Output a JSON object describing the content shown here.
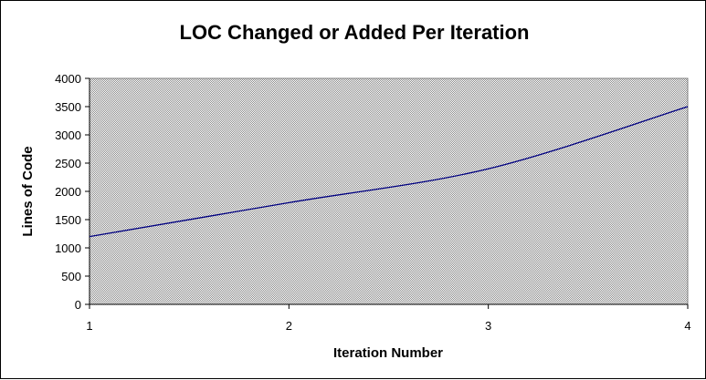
{
  "chart_data": {
    "type": "line",
    "title": "LOC Changed or Added Per Iteration",
    "xlabel": "Iteration Number",
    "ylabel": "Lines of Code",
    "x": [
      1,
      2,
      3,
      4
    ],
    "x_ticks": [
      "1",
      "2",
      "3",
      "4"
    ],
    "y_ticks": [
      "0",
      "500",
      "1000",
      "1500",
      "2000",
      "2500",
      "3000",
      "3500",
      "4000"
    ],
    "xlim": [
      1,
      4
    ],
    "ylim": [
      0,
      4000
    ],
    "series": [
      {
        "values": [
          1200,
          1800,
          2400,
          3500
        ]
      }
    ],
    "smoothed": true,
    "grid": false,
    "legend": "none",
    "colors": {
      "line": "#000080",
      "plot_background": "#c0c0c0"
    }
  }
}
